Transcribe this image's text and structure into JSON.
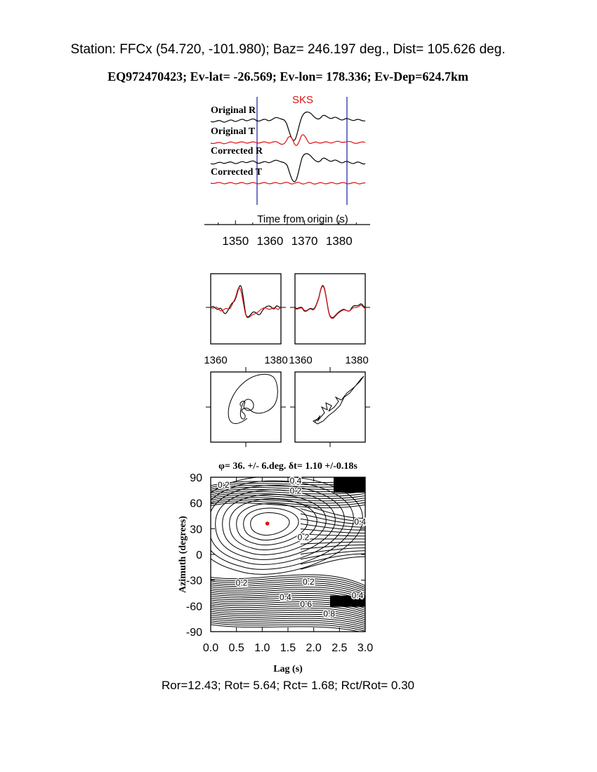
{
  "header": {
    "station_line": "Station: FFCx (54.720, -101.980); Baz=  246.197 deg., Dist=  105.626 deg.",
    "event_line": "EQ972470423; Ev-lat= -26.569; Ev-lon= 178.336; Ev-Dep=624.7km"
  },
  "colors": {
    "black": "#000000",
    "red": "#dd1111",
    "blue": "#1a1aa6"
  },
  "chart_data": [
    {
      "type": "line",
      "panel": "seismograms",
      "phase_label": "SKS",
      "trace_labels": [
        "Original R",
        "Original T",
        "Corrected R",
        "Corrected T"
      ],
      "xlabel": "Time from origin (s)",
      "x_ticks": [
        1350,
        1360,
        1370,
        1380
      ],
      "xlim": [
        1341,
        1389
      ],
      "window_markers": [
        1358.8,
        1381.6
      ],
      "series": [
        {
          "name": "Original R",
          "color": "#000000"
        },
        {
          "name": "Original T",
          "color": "#dd1111"
        },
        {
          "name": "Corrected R",
          "color": "#000000"
        },
        {
          "name": "Corrected T",
          "color": "#dd1111"
        }
      ]
    },
    {
      "type": "line",
      "panel": "waveform-overlay-original",
      "x_ticks": [
        1360,
        1380
      ],
      "xlim": [
        1358.8,
        1381.6
      ],
      "series": [
        {
          "color": "#000000"
        },
        {
          "color": "#dd1111"
        }
      ]
    },
    {
      "type": "line",
      "panel": "waveform-overlay-corrected",
      "x_ticks": [
        1360,
        1380
      ],
      "xlim": [
        1358.8,
        1381.6
      ],
      "series": [
        {
          "color": "#000000"
        },
        {
          "color": "#dd1111"
        }
      ]
    },
    {
      "type": "line",
      "panel": "particle-motion-original"
    },
    {
      "type": "line",
      "panel": "particle-motion-corrected"
    },
    {
      "type": "contour",
      "panel": "energy-grid",
      "title": "φ= 36. +/- 6.deg. δt= 1.10 +/-0.18s",
      "xlabel": "Lag (s)",
      "ylabel": "Azimuth (degrees)",
      "xlim": [
        0,
        3
      ],
      "ylim": [
        -90,
        90
      ],
      "x_ticks": [
        "0.0",
        "0.5",
        "1.0",
        "1.5",
        "2.0",
        "2.5",
        "3.0"
      ],
      "y_ticks": [
        "90",
        "60",
        "30",
        "0",
        "-30",
        "-60",
        "-90"
      ],
      "best_fit": {
        "lag": 1.1,
        "azimuth": 36
      },
      "contour_labels": [
        "0.2",
        "0.4",
        "0.2",
        "0.4",
        "0.2",
        "0.2",
        "0.2",
        "0.4",
        "0.6",
        "0.8",
        "0.4"
      ]
    }
  ],
  "footer": {
    "ratios_line": "Ror=12.43; Rot= 5.64; Rct= 1.68; Rct/Rot= 0.30"
  }
}
